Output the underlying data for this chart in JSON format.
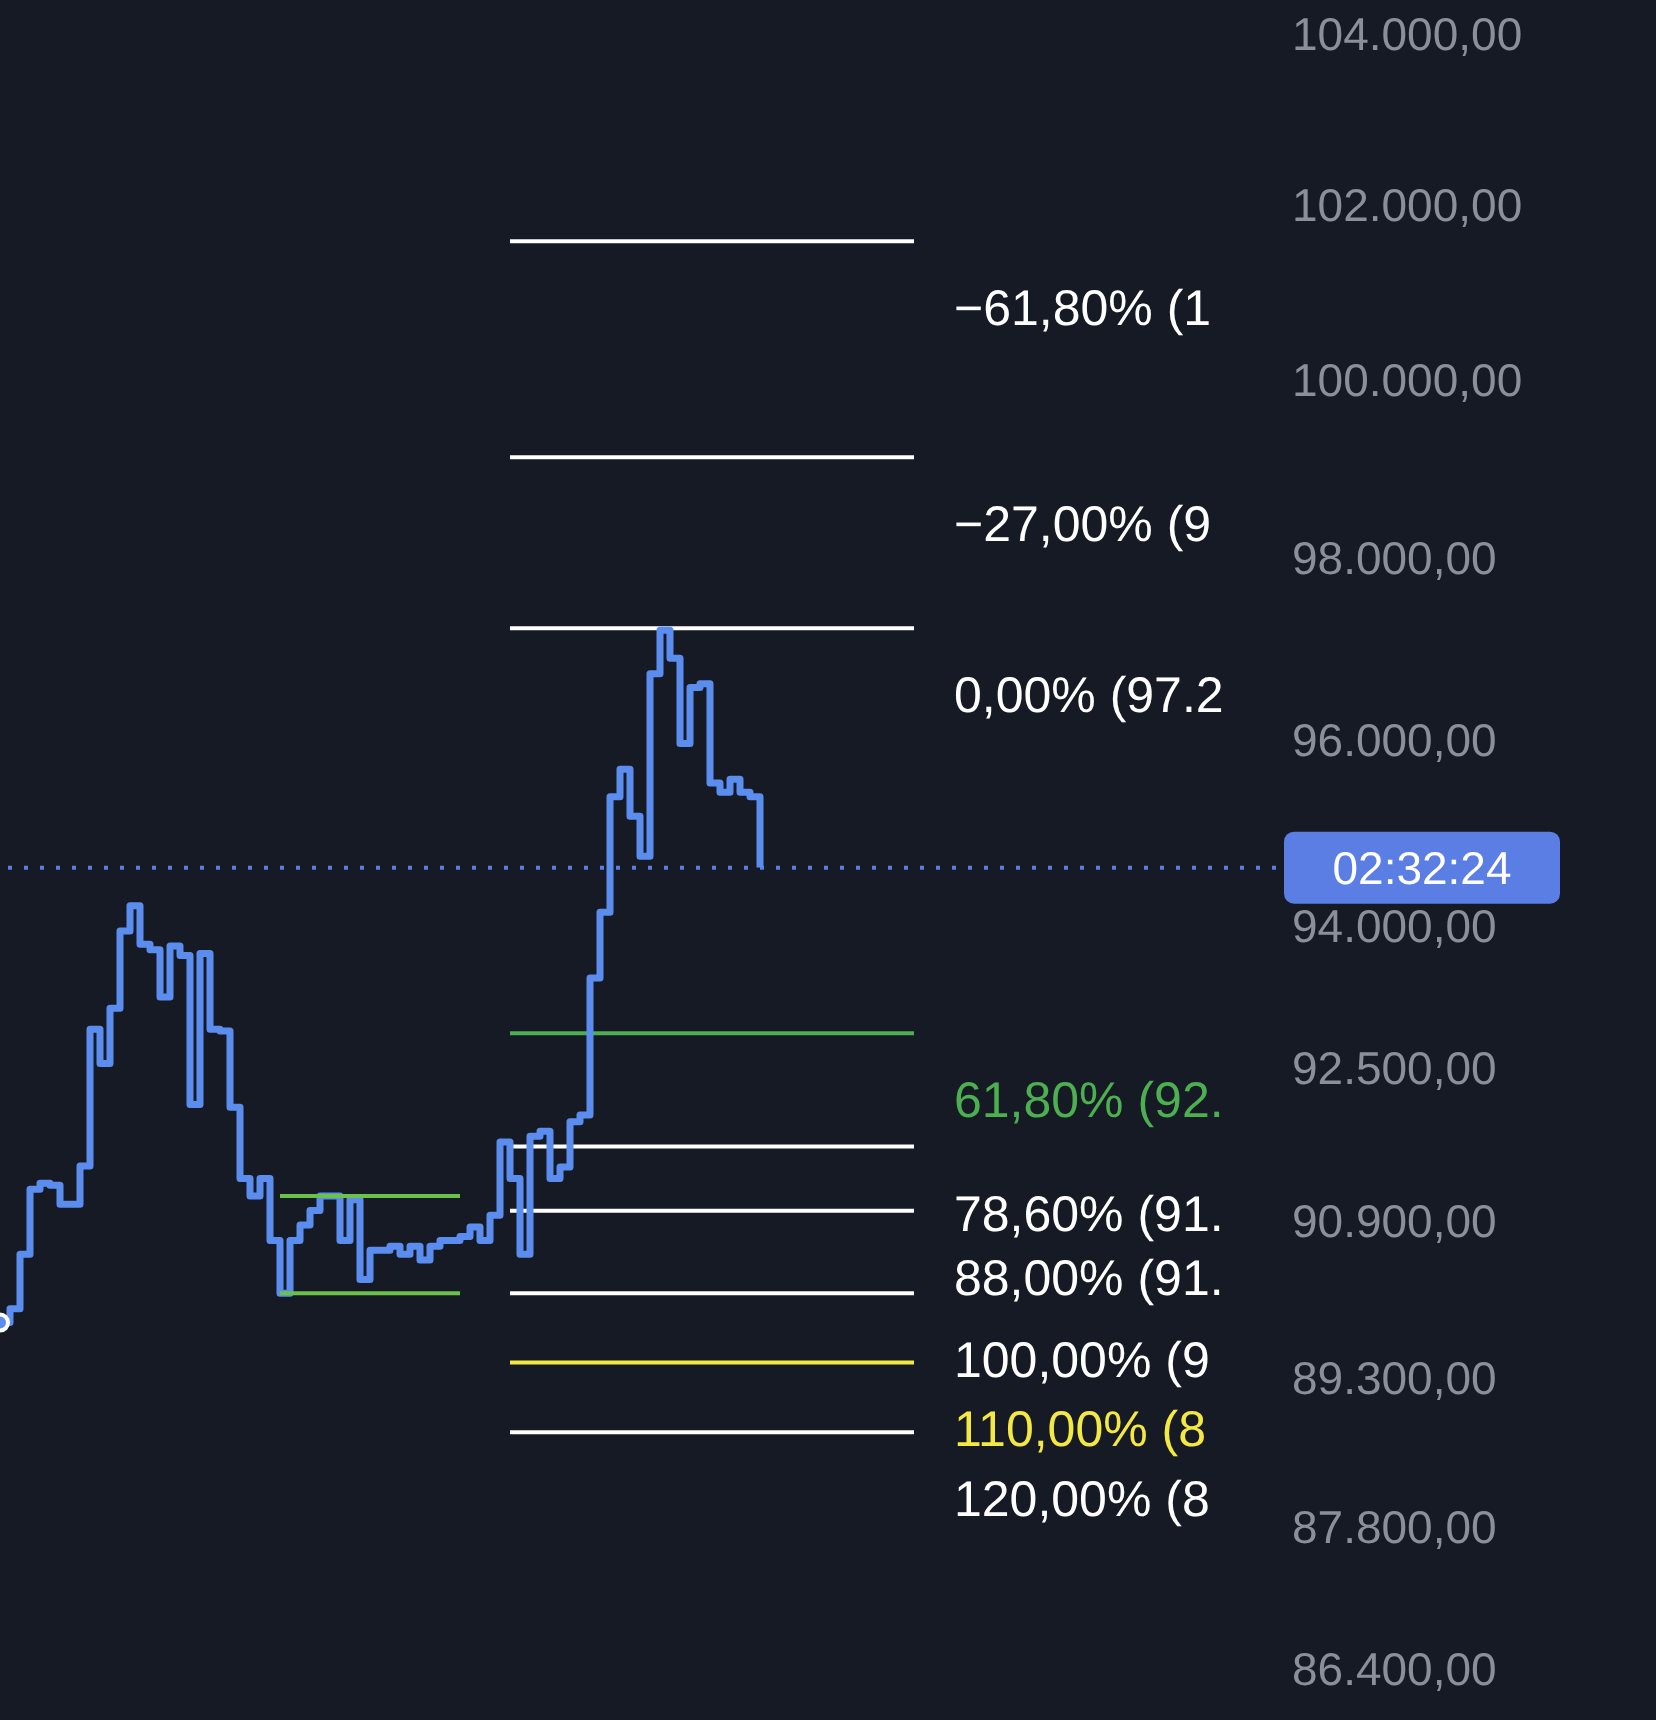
{
  "chart_data": {
    "type": "step",
    "categories": [
      null,
      null,
      null,
      null,
      null,
      null,
      null,
      null,
      null,
      null,
      null,
      null,
      null,
      null,
      null,
      null,
      null,
      null,
      null,
      null,
      null,
      null,
      null,
      null,
      null,
      null,
      null,
      null,
      null,
      null,
      null,
      null,
      null,
      null,
      null,
      null,
      null,
      null,
      null,
      null,
      null,
      null,
      null,
      null,
      null,
      null,
      null,
      null,
      null,
      null,
      null,
      null,
      null,
      null,
      null,
      null,
      null,
      null,
      null,
      null,
      null,
      null,
      null,
      null,
      null,
      null,
      null,
      null,
      null,
      null,
      null,
      null,
      null,
      null,
      null,
      null,
      null
    ],
    "series": [
      {
        "color": "#5b8def",
        "values": [
          89860,
          90000,
          90560,
          91230,
          91290,
          91270,
          91075,
          91075,
          91470,
          92900,
          92540,
          93120,
          93940,
          94210,
          93800,
          93740,
          93240,
          93780,
          93680,
          92110,
          93700,
          92900,
          92880,
          92080,
          91340,
          91160,
          91340,
          90700,
          90160,
          90700,
          90860,
          91010,
          91160,
          91160,
          90700,
          91120,
          90300,
          90600,
          90600,
          90640,
          90560,
          90640,
          90500,
          90640,
          90700,
          90700,
          90740,
          90840,
          90700,
          90960,
          91720,
          91340,
          90560,
          91780,
          91830,
          91340,
          91460,
          91930,
          92000,
          93440,
          94140,
          95380,
          95680,
          95170,
          94740,
          96720,
          97200,
          96890,
          95960,
          96570,
          96610,
          95530,
          95430,
          95570,
          95430,
          95380,
          94620
        ]
      },
      {
        "type": "line",
        "color": "#6bc24a",
        "values": [
          null,
          null,
          null,
          null,
          null,
          null,
          null,
          null,
          null,
          null,
          null,
          null,
          null,
          null,
          null,
          null,
          null,
          null,
          null,
          null,
          null,
          null,
          null,
          null,
          null,
          null,
          null,
          null,
          91160,
          91160,
          91160,
          91160,
          91160,
          91160,
          91160,
          91160,
          91160,
          91160,
          91160,
          91160,
          91160,
          91160,
          91160,
          91160,
          91160,
          91160,
          91160,
          null,
          null,
          null,
          null,
          null,
          null,
          null,
          null,
          null,
          null,
          null,
          null,
          null,
          null,
          null,
          null,
          null,
          null,
          null,
          null,
          null,
          null,
          null,
          null,
          null,
          null,
          null,
          null,
          null,
          null
        ]
      },
      {
        "type": "line",
        "color": "#6bc24a",
        "values": [
          null,
          null,
          null,
          null,
          null,
          null,
          null,
          null,
          null,
          null,
          null,
          null,
          null,
          null,
          null,
          null,
          null,
          null,
          null,
          null,
          null,
          null,
          null,
          null,
          null,
          null,
          null,
          null,
          90160,
          90160,
          90160,
          90160,
          90160,
          90160,
          90160,
          90160,
          90160,
          90160,
          90160,
          90160,
          90160,
          90160,
          90160,
          90160,
          90160,
          90160,
          90160,
          null,
          null,
          null,
          null,
          null,
          null,
          null,
          null,
          null,
          null,
          null,
          null,
          null,
          null,
          null,
          null,
          null,
          null,
          null,
          null,
          null,
          null,
          null,
          null,
          null,
          null,
          null,
          null,
          null,
          null
        ]
      }
    ],
    "log": "y",
    "ylim": [
      85900,
      104400
    ],
    "yticks": [
      {
        "value": 86400,
        "label": "86.400,00"
      },
      {
        "value": 87800,
        "label": "87.800,00"
      },
      {
        "value": 89300,
        "label": "89.300,00"
      },
      {
        "value": 90900,
        "label": "90.900,00"
      },
      {
        "value": 92500,
        "label": "92.500,00"
      },
      {
        "value": 94000,
        "label": "94.000,00"
      },
      {
        "value": 96000,
        "label": "96.000,00"
      },
      {
        "value": 98000,
        "label": "98.000,00"
      },
      {
        "value": 100000,
        "label": "100.000,00"
      },
      {
        "value": 102000,
        "label": "102.000,00"
      },
      {
        "value": 104000,
        "label": "104.000,00"
      }
    ],
    "ref_lines": [
      {
        "axis": "y",
        "value": 101583,
        "color": "#ffffff"
      },
      {
        "axis": "y",
        "value": 99126,
        "color": "#ffffff"
      },
      {
        "axis": "y",
        "value": 97220,
        "color": "#ffffff"
      },
      {
        "axis": "y",
        "value": 92857,
        "color": "#4caf50"
      },
      {
        "axis": "y",
        "value": 91671,
        "color": "#ffffff"
      },
      {
        "axis": "y",
        "value": 91007,
        "color": "#ffffff"
      },
      {
        "axis": "y",
        "value": 90160,
        "color": "#ffffff"
      },
      {
        "axis": "y",
        "value": 89454,
        "color": "#f4e842"
      },
      {
        "axis": "y",
        "value": 88748,
        "color": "#ffffff"
      },
      {
        "axis": "y",
        "value": 94617,
        "color": "#5b7ee5",
        "line_style": "dotted"
      }
    ],
    "annotations": [
      "−61,80% (1",
      "−27,00% (9",
      "0,00% (97.2",
      "61,80% (92.",
      "78,60% (91.",
      "88,00% (91.",
      "100,00% (9",
      "110,00% (8",
      "120,00% (8",
      "02:32:24"
    ],
    "grid": false,
    "legend": false,
    "tick_labels": "y"
  }
}
